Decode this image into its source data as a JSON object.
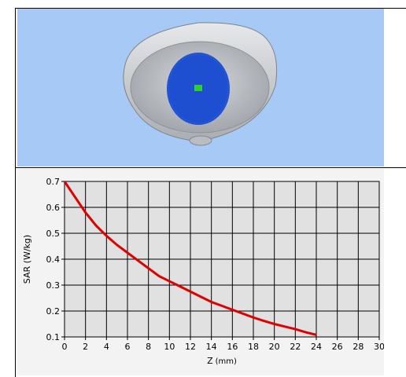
{
  "colors": {
    "background_3d": "#a7c9f5",
    "phantom": "#c9ccd1",
    "scan_grid": "#1f4fd1",
    "peak_marker": "#30d030",
    "plot_bg": "#e1e1e1",
    "grid_line": "#000000",
    "curve": "#e00000"
  },
  "scene": {
    "description_icons": [
      "phantom-bowl-icon",
      "scan-grid-icon",
      "peak-location-icon"
    ]
  },
  "chart_data": {
    "type": "line",
    "xlabel": "Z",
    "xlabel_unit": "(mm)",
    "ylabel": "SAR (W/kg)",
    "xlim": [
      0,
      30
    ],
    "ylim": [
      0.1,
      0.7
    ],
    "x_ticks": [
      "0",
      "2",
      "4",
      "6",
      "8",
      "10",
      "12",
      "14",
      "16",
      "18",
      "20",
      "22",
      "24",
      "26",
      "28",
      "30"
    ],
    "y_ticks": [
      "0.1",
      "0.2",
      "0.3",
      "0.4",
      "0.5",
      "0.6",
      "0.7"
    ],
    "grid": true,
    "series": [
      {
        "x": [
          0,
          1,
          2,
          3,
          4,
          5,
          6,
          7,
          8,
          9,
          10,
          11,
          12,
          13,
          14,
          15,
          16,
          17,
          18,
          19,
          20,
          21,
          22,
          23,
          24
        ],
        "values": [
          0.7,
          0.64,
          0.58,
          0.53,
          0.49,
          0.455,
          0.425,
          0.395,
          0.365,
          0.335,
          0.315,
          0.295,
          0.275,
          0.255,
          0.235,
          0.22,
          0.205,
          0.19,
          0.175,
          0.162,
          0.15,
          0.14,
          0.13,
          0.118,
          0.108
        ]
      }
    ]
  }
}
